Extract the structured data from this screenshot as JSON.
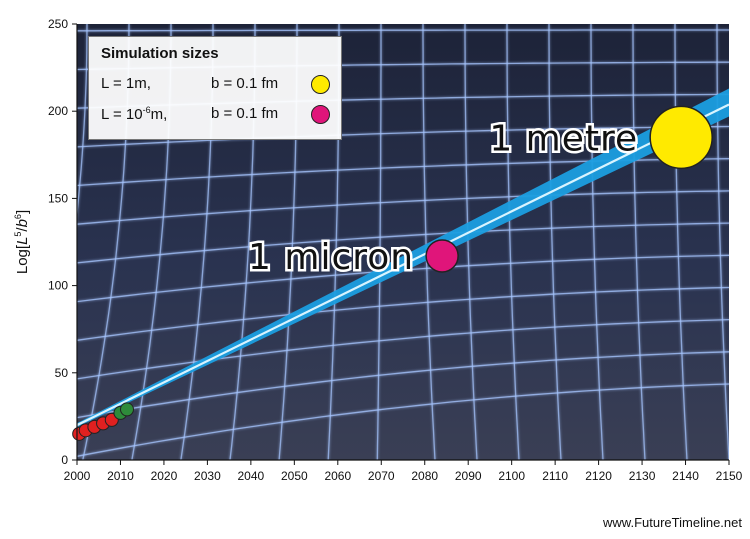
{
  "chart_data": {
    "type": "scatter",
    "title": "",
    "xlabel": "",
    "ylabel": "Log[L⁵/b⁶]",
    "ylabel_parts": {
      "prefix": "Log[",
      "a": "L",
      "a_exp": "5",
      "slash": "/",
      "b": "b",
      "b_exp": "6",
      "suffix": "]"
    },
    "xlim": [
      2000,
      2150
    ],
    "ylim": [
      0,
      250
    ],
    "xticks": [
      2000,
      2010,
      2020,
      2030,
      2040,
      2050,
      2060,
      2070,
      2080,
      2090,
      2100,
      2110,
      2120,
      2130,
      2140,
      2150
    ],
    "yticks": [
      0,
      50,
      100,
      150,
      200,
      250
    ],
    "grid": false,
    "trend": {
      "from": [
        2000,
        20
      ],
      "to": [
        2150,
        205
      ]
    },
    "series": [
      {
        "color": "#e02020",
        "points": [
          [
            2000.5,
            15
          ],
          [
            2002,
            17
          ],
          [
            2004,
            19
          ],
          [
            2006,
            21
          ],
          [
            2008,
            23
          ]
        ]
      },
      {
        "color": "#2e8b3a",
        "points": [
          [
            2010,
            27
          ],
          [
            2011.5,
            29
          ]
        ]
      }
    ],
    "annotations": [
      {
        "text": "1 micron",
        "x": 2084,
        "y": 117,
        "color": "#e0157a",
        "size": "medium"
      },
      {
        "text": "1 metre",
        "x": 2139,
        "y": 185,
        "color": "#ffea00",
        "size": "large"
      }
    ],
    "legend": {
      "position": "top-left",
      "title": "Simulation sizes",
      "items": [
        {
          "l": "L = 1m,",
          "b": "b = 0.1 fm",
          "color": "#ffea00"
        },
        {
          "l_prefix": "L = 10",
          "l_exp": "-6",
          "l_suffix": "m,",
          "b": "b = 0.1 fm",
          "color": "#e0157a"
        }
      ]
    },
    "background": {
      "base": "#252c44",
      "gridline": "#a7c6ff",
      "trend_band": "#1b9ee0",
      "trend_core": "#d8f4ff"
    }
  },
  "credit": "www.FutureTimeline.net"
}
